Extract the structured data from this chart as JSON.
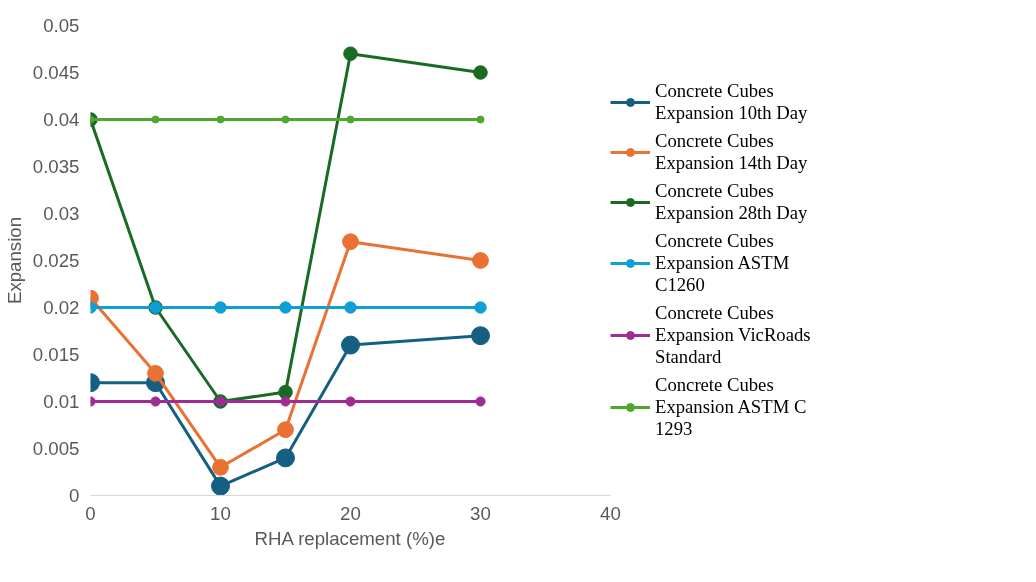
{
  "chart_data": {
    "type": "line",
    "xlabel": "RHA replacement (%)e",
    "ylabel": "Expansion",
    "x": [
      0,
      5,
      10,
      15,
      20,
      30
    ],
    "series": [
      {
        "name": "Concrete Cubes Expansion 10th Day",
        "color": "#156082",
        "values": [
          0.012,
          0.012,
          0.001,
          0.004,
          0.016,
          0.017
        ]
      },
      {
        "name": "Concrete Cubes Expansion 14th Day",
        "color": "#e97132",
        "values": [
          0.021,
          0.013,
          0.003,
          0.007,
          0.027,
          0.025
        ]
      },
      {
        "name": "Concrete Cubes Expansion 28th Day",
        "color": "#196b24",
        "values": [
          0.04,
          0.02,
          0.01,
          0.011,
          0.047,
          0.045
        ]
      },
      {
        "name": "Concrete Cubes Expansion ASTM C1260",
        "color": "#0f9ed5",
        "values": [
          0.02,
          0.02,
          0.02,
          0.02,
          0.02,
          0.02
        ]
      },
      {
        "name": "Concrete Cubes Expansion VicRoads Standard",
        "color": "#a02b93",
        "values": [
          0.01,
          0.01,
          0.01,
          0.01,
          0.01,
          0.01
        ]
      },
      {
        "name": "Concrete Cubes Expansion ASTM C 1293",
        "color": "#4ea72e",
        "values": [
          0.04,
          0.04,
          0.04,
          0.04,
          0.04,
          0.04
        ]
      }
    ],
    "xlim": [
      0,
      40
    ],
    "xticks": [
      0,
      10,
      20,
      30,
      40
    ],
    "ylim": [
      0,
      0.05
    ],
    "yticks": [
      0,
      0.005,
      0.01,
      0.015,
      0.02,
      0.025,
      0.03,
      0.035,
      0.04,
      0.045,
      0.05
    ],
    "grid": false,
    "legend": "right",
    "marker": "circle",
    "line_style": "solid"
  }
}
